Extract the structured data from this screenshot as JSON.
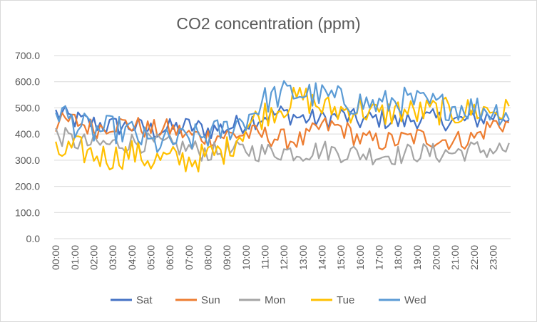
{
  "chart_data": {
    "type": "line",
    "title": "CO2 concentration (ppm)",
    "xlabel": "",
    "ylabel": "",
    "ylim": [
      0,
      700
    ],
    "y_ticks": [
      "0.0",
      "100.0",
      "200.0",
      "300.0",
      "400.0",
      "500.0",
      "600.0",
      "700.0"
    ],
    "x_tick_labels": [
      "00:00",
      "01:00",
      "02:00",
      "03:00",
      "04:00",
      "05:00",
      "06:00",
      "07:00",
      "08:00",
      "09:00",
      "10:00",
      "11:00",
      "12:00",
      "13:00",
      "14:00",
      "15:00",
      "16:00",
      "17:00",
      "18:00",
      "19:00",
      "20:00",
      "21:00",
      "22:00",
      "23:00"
    ],
    "points_per_hour": 6,
    "grid": true,
    "legend_position": "bottom",
    "series": [
      {
        "name": "Sat",
        "color": "#4472c4",
        "hourly_values": [
          480,
          455,
          440,
          430,
          430,
          415,
          420,
          430,
          415,
          425,
          445,
          470,
          480,
          460,
          455,
          470,
          450,
          460,
          445,
          460,
          455,
          450,
          455,
          470,
          465
        ]
      },
      {
        "name": "Sun",
        "color": "#ed7d31",
        "hourly_values": [
          440,
          450,
          420,
          440,
          435,
          415,
          420,
          395,
          390,
          395,
          400,
          395,
          380,
          375,
          430,
          425,
          380,
          370,
          375,
          390,
          380,
          375,
          385,
          440,
          440
        ]
      },
      {
        "name": "Mon",
        "color": "#a5a5a5",
        "hourly_values": [
          400,
          370,
          360,
          360,
          370,
          365,
          355,
          345,
          330,
          330,
          340,
          330,
          335,
          330,
          340,
          330,
          325,
          320,
          320,
          330,
          325,
          330,
          340,
          340,
          340
        ]
      },
      {
        "name": "Tue",
        "color": "#ffc000",
        "hourly_values": [
          320,
          345,
          320,
          310,
          330,
          300,
          305,
          300,
          315,
          340,
          430,
          480,
          510,
          540,
          500,
          490,
          500,
          470,
          490,
          480,
          490,
          480,
          490,
          490,
          480
        ]
      },
      {
        "name": "Wed",
        "color": "#5b9bd5",
        "hourly_values": [
          500,
          440,
          410,
          420,
          405,
          360,
          370,
          380,
          395,
          420,
          460,
          530,
          555,
          555,
          545,
          530,
          520,
          510,
          530,
          520,
          510,
          505,
          500,
          490,
          480
        ]
      }
    ]
  }
}
